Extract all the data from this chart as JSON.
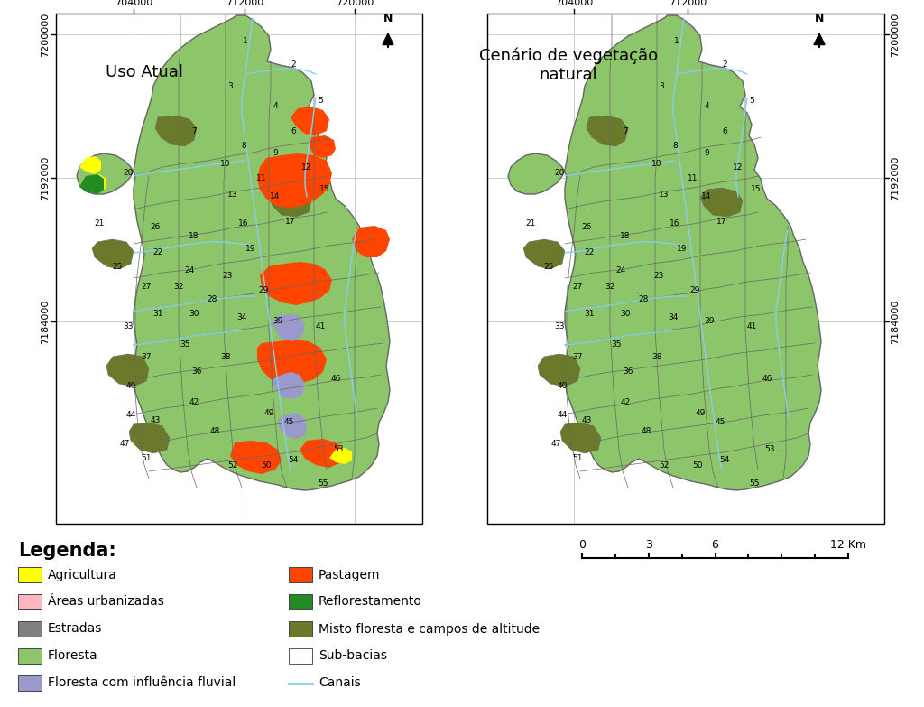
{
  "title_left": "Uso Atual",
  "title_right": "Cenário de vegetação\nnatural",
  "legenda_title": "Legenda:",
  "legend_items_col1": [
    {
      "label": "Agricultura",
      "color": "#FFFF00",
      "type": "patch"
    },
    {
      "label": "Áreas urbanizadas",
      "color": "#FFB6C1",
      "type": "patch"
    },
    {
      "label": "Estradas",
      "color": "#808080",
      "type": "patch"
    },
    {
      "label": "Floresta",
      "color": "#8DC66A",
      "type": "patch"
    },
    {
      "label": "Floresta com influência fluvial",
      "color": "#9999CC",
      "type": "patch"
    }
  ],
  "legend_items_col2": [
    {
      "label": "Pastagem",
      "color": "#FF4500",
      "type": "patch"
    },
    {
      "label": "Reflorestamento",
      "color": "#228B22",
      "type": "patch"
    },
    {
      "label": "Misto floresta e campos de altitude",
      "color": "#6B7A2A",
      "type": "patch"
    },
    {
      "label": "Sub-bacias",
      "color": "#FFFFFF",
      "type": "patch"
    },
    {
      "label": "Canais",
      "color": "#87CEEB",
      "type": "line"
    }
  ],
  "x_ticks_left": [
    "704000",
    "712000",
    "720000"
  ],
  "y_ticks_left": [
    "7200000",
    "7192000",
    "7184000"
  ],
  "x_ticks_right": [
    "704000",
    "712000"
  ],
  "y_ticks_right": [
    "7200000",
    "7192000",
    "7184000"
  ],
  "scale_bar_labels": [
    "0",
    "3",
    "6",
    "12 Km"
  ],
  "bg_color": "#FFFFFF",
  "map_bg_color": "#8DC66A",
  "forest_mix_color": "#6B7A2A",
  "pasture_color": "#FF4500",
  "reforest_color": "#228B22",
  "urban_color": "#FFB6C1",
  "agri_color": "#FFFF00",
  "river_influence_color": "#9999CC",
  "canal_color": "#87CEEB",
  "subbasin_border_color": "#666666",
  "grid_color": "#CCCCCC",
  "font_size_title": 13,
  "font_size_legend_title": 15,
  "font_size_legend": 10,
  "font_size_ticks": 8,
  "font_size_subbasin": 6.5
}
